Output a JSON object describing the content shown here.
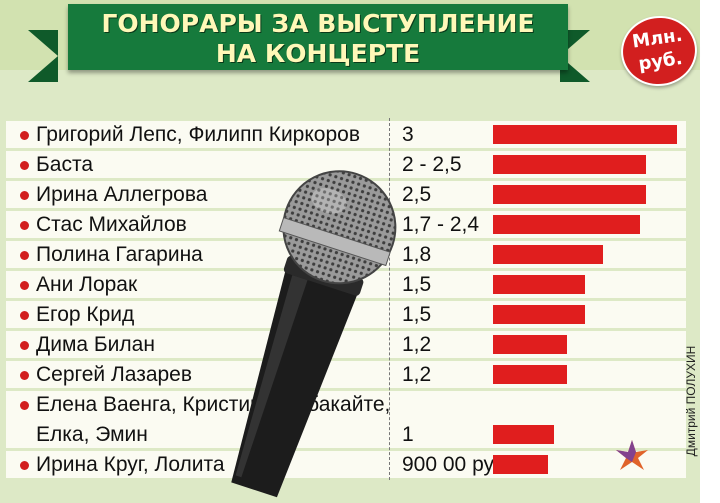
{
  "title": {
    "line1": "ГОНОРАРЫ ЗА ВЫСТУПЛЕНИЕ",
    "line2": "НА КОНЦЕРТЕ"
  },
  "unit_badge": {
    "line1": "Млн.",
    "line2": "руб."
  },
  "credit": "Дмитрий ПОЛУХИН",
  "colors": {
    "bar": "#e01e1e",
    "ribbon": "#167a3c",
    "background": "#dde9c6",
    "badge": "#d21f1f"
  },
  "icons": [
    "microphone-image",
    "star-logo-icon"
  ],
  "chart_data": {
    "type": "bar",
    "orientation": "horizontal",
    "title": "ГОНОРАРЫ ЗА ВЫСТУПЛЕНИЕ НА КОНЦЕРТЕ",
    "unit": "Млн. руб.",
    "categories": [
      [
        "Григорий Лепс, Филипп Киркоров"
      ],
      [
        "Баста"
      ],
      [
        "Ирина Аллегрова"
      ],
      [
        "Стас Михайлов"
      ],
      [
        "Полина Гагарина"
      ],
      [
        "Ани Лорак"
      ],
      [
        "Егор Крид"
      ],
      [
        "Дима Билан"
      ],
      [
        "Сергей Лазарев"
      ],
      [
        "Елена Ваенга, Кристина Орбакайте,",
        "Елка, Эмин"
      ],
      [
        "Ирина Круг, Лолита"
      ]
    ],
    "value_labels": [
      "3",
      "2 - 2,5",
      "2,5",
      "1,7 - 2,4",
      "1,8",
      "1,5",
      "1,5",
      "1,2",
      "1,2",
      "1",
      "900 00 руб."
    ],
    "values": [
      3,
      2.5,
      2.5,
      2.4,
      1.8,
      1.5,
      1.5,
      1.2,
      1.2,
      1,
      0.9
    ],
    "xlim": [
      0,
      3
    ]
  }
}
